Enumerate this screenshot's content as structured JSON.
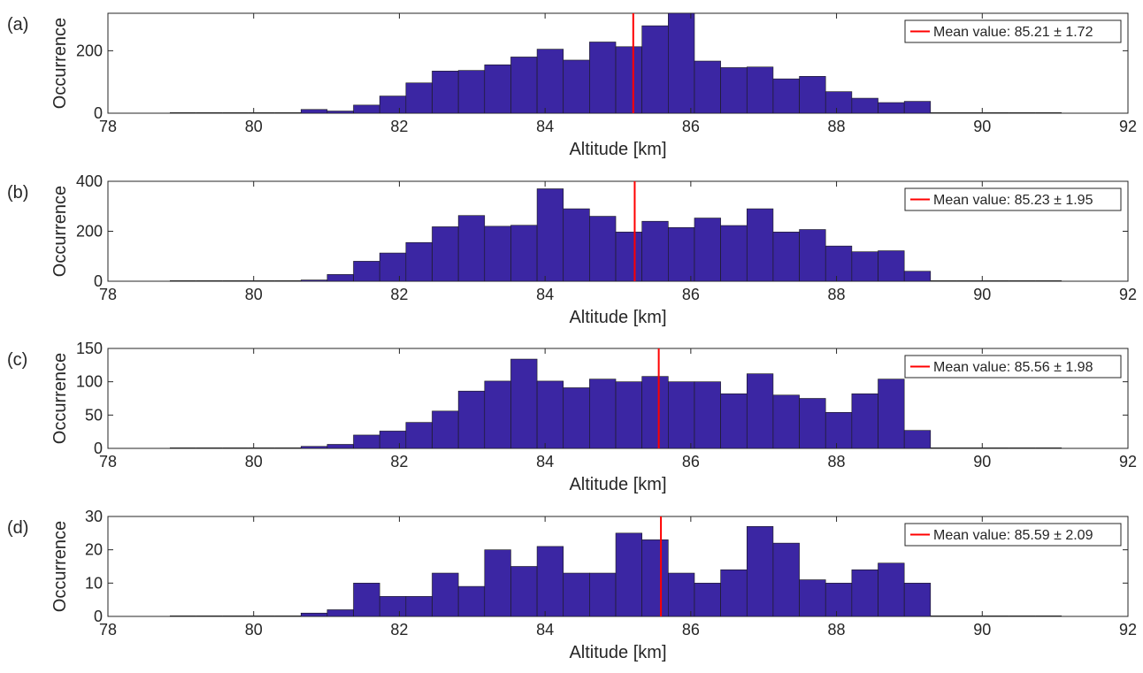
{
  "chart_data": [
    {
      "type": "bar",
      "panel_label": "(a)",
      "xlabel": "Altitude [km]",
      "ylabel": "Occurrence",
      "xlim": [
        78,
        92
      ],
      "ylim": [
        0,
        320
      ],
      "xticks": [
        "78",
        "80",
        "82",
        "84",
        "86",
        "88",
        "90",
        "92"
      ],
      "yticks": [
        "0",
        "200"
      ],
      "bin_start": 78.85,
      "bin_width": 0.36,
      "values": [
        0,
        0,
        0,
        0,
        0,
        12,
        7,
        26,
        55,
        97,
        135,
        137,
        155,
        180,
        205,
        170,
        228,
        213,
        280,
        320,
        167,
        146,
        148,
        110,
        118,
        69,
        48,
        34,
        38,
        0,
        0,
        0,
        0,
        0
      ],
      "bar_color": "#3b26a3",
      "mean_value": 85.21,
      "legend": "Mean value: 85.21 ± 1.72",
      "legend_color": "#ff0000",
      "legend_position": "top-right"
    },
    {
      "type": "bar",
      "panel_label": "(b)",
      "xlabel": "Altitude [km]",
      "ylabel": "Occurrence",
      "xlim": [
        78,
        92
      ],
      "ylim": [
        0,
        400
      ],
      "xticks": [
        "78",
        "80",
        "82",
        "84",
        "86",
        "88",
        "90",
        "92"
      ],
      "yticks": [
        "0",
        "200",
        "400"
      ],
      "bin_start": 78.85,
      "bin_width": 0.36,
      "values": [
        0,
        0,
        0,
        0,
        0,
        5,
        27,
        80,
        113,
        155,
        218,
        263,
        220,
        224,
        370,
        290,
        260,
        197,
        240,
        215,
        253,
        223,
        290,
        197,
        207,
        141,
        118,
        122,
        40,
        0,
        0,
        0,
        0,
        0
      ],
      "bar_color": "#3b26a3",
      "mean_value": 85.23,
      "legend": "Mean value: 85.23 ± 1.95",
      "legend_color": "#ff0000",
      "legend_position": "top-right"
    },
    {
      "type": "bar",
      "panel_label": "(c)",
      "xlabel": "Altitude [km]",
      "ylabel": "Occurrence",
      "xlim": [
        78,
        92
      ],
      "ylim": [
        0,
        150
      ],
      "xticks": [
        "78",
        "80",
        "82",
        "84",
        "86",
        "88",
        "90",
        "92"
      ],
      "yticks": [
        "0",
        "50",
        "100",
        "150"
      ],
      "bin_start": 78.85,
      "bin_width": 0.36,
      "values": [
        0,
        0,
        0,
        0,
        0,
        3,
        6,
        20,
        26,
        39,
        56,
        86,
        101,
        134,
        101,
        91,
        104,
        100,
        108,
        100,
        100,
        82,
        112,
        80,
        75,
        54,
        82,
        104,
        27,
        0,
        0,
        0,
        0,
        0
      ],
      "bar_color": "#3b26a3",
      "mean_value": 85.56,
      "legend": "Mean value: 85.56 ± 1.98",
      "legend_color": "#ff0000",
      "legend_position": "top-right"
    },
    {
      "type": "bar",
      "panel_label": "(d)",
      "xlabel": "Altitude [km]",
      "ylabel": "Occurrence",
      "xlim": [
        78,
        92
      ],
      "ylim": [
        0,
        30
      ],
      "xticks": [
        "78",
        "80",
        "82",
        "84",
        "86",
        "88",
        "90",
        "92"
      ],
      "yticks": [
        "0",
        "10",
        "20",
        "30"
      ],
      "bin_start": 78.85,
      "bin_width": 0.36,
      "values": [
        0,
        0,
        0,
        0,
        0,
        1,
        2,
        10,
        6,
        6,
        13,
        9,
        20,
        15,
        21,
        13,
        13,
        25,
        23,
        13,
        10,
        14,
        27,
        22,
        11,
        10,
        14,
        16,
        10,
        0,
        0,
        0,
        0,
        0
      ],
      "bar_color": "#3b26a3",
      "mean_value": 85.59,
      "legend": "Mean value: 85.59 ± 2.09",
      "legend_color": "#ff0000",
      "legend_position": "top-right"
    }
  ]
}
